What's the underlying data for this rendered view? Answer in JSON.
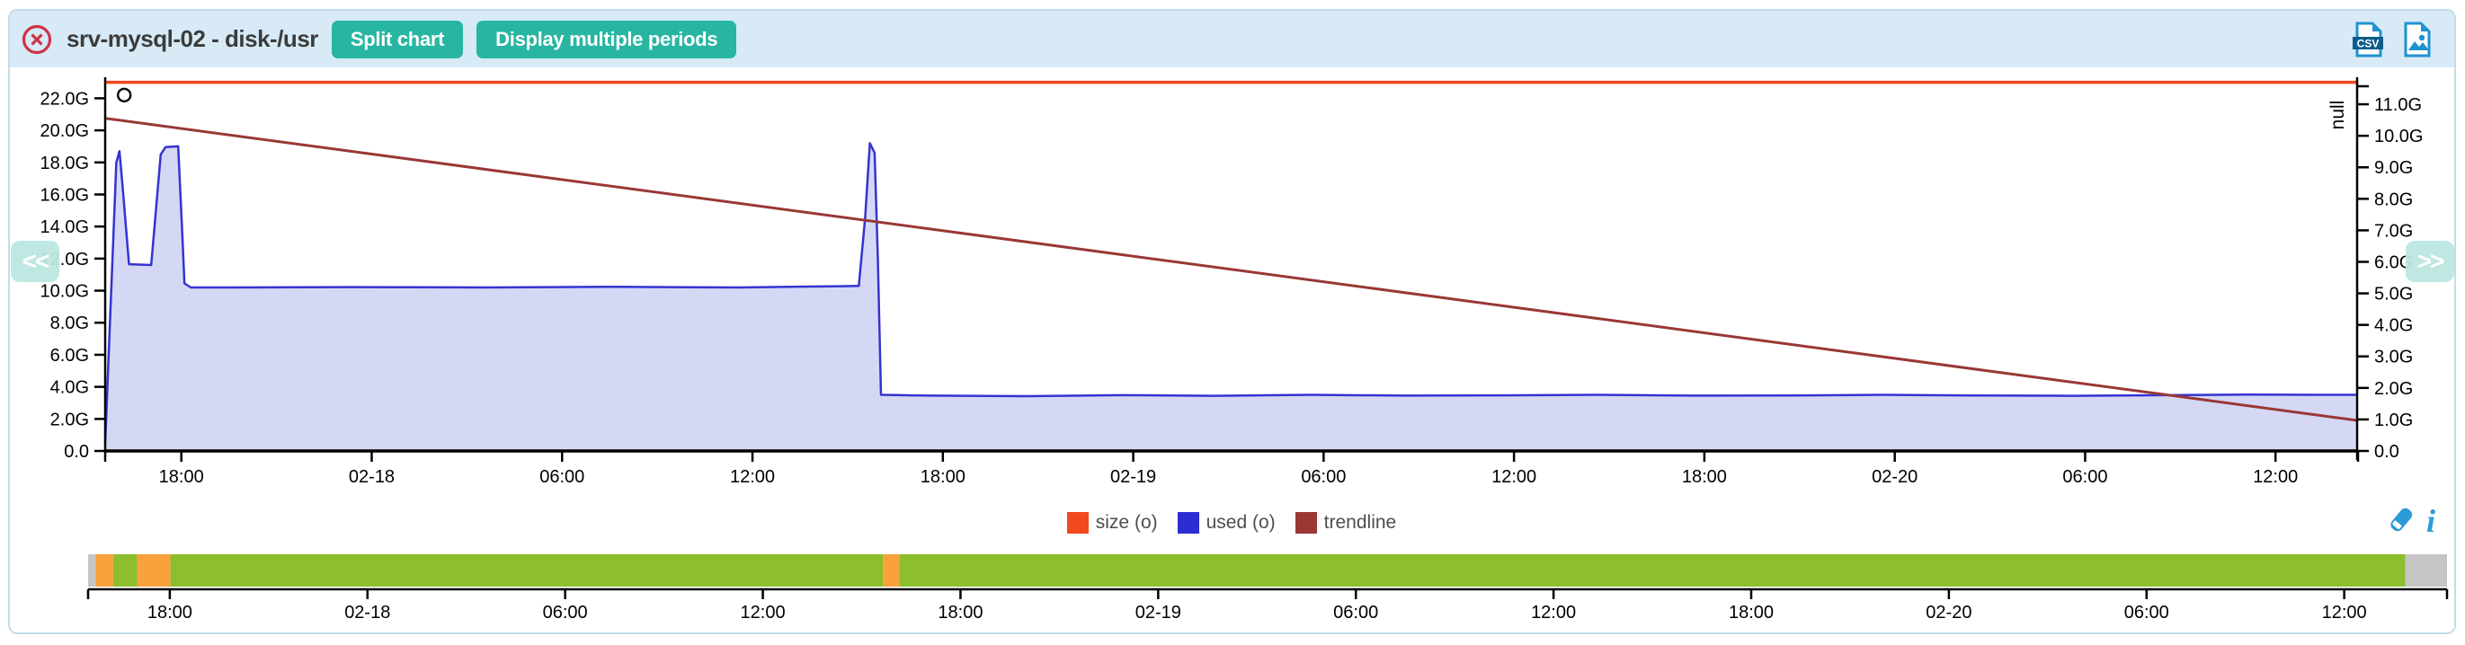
{
  "header": {
    "title": "srv-mysql-02 - disk-/usr",
    "split_chart_label": "Split chart",
    "multiple_periods_label": "Display multiple periods",
    "header_background": "#d7eaf6",
    "button_color": "#28b6a2",
    "close_icon_color": "#cf3347"
  },
  "toolbar": {
    "csv_export_icon": "csv-export-icon",
    "image_export_icon": "image-export-icon",
    "icon_color": "#1f93cf"
  },
  "nav": {
    "prev": "<<",
    "next": ">>"
  },
  "legend": {
    "items": [
      {
        "label": "size (o)",
        "color": "#f2491f"
      },
      {
        "label": "used (o)",
        "color": "#2d2dd2"
      },
      {
        "label": "trendline",
        "color": "#993835"
      }
    ],
    "tool_icon_color": "#2b9cd8"
  },
  "chart_data": {
    "type": "area",
    "title": "srv-mysql-02 - disk-/usr",
    "x_tick_labels": [
      "18:00",
      "02-18",
      "06:00",
      "12:00",
      "18:00",
      "02-19",
      "06:00",
      "12:00",
      "18:00",
      "02-20",
      "06:00",
      "12:00"
    ],
    "x_hours_range": [
      0,
      71
    ],
    "x_first_tick_hour": 2.4,
    "x_tick_interval_hours": 6,
    "left_axis": {
      "range": [
        0,
        23.2
      ],
      "tick_values": [
        0,
        2,
        4,
        6,
        8,
        10,
        12,
        14,
        16,
        18,
        20,
        22
      ],
      "tick_labels": [
        "0.0",
        "2.0G",
        "4.0G",
        "6.0G",
        "8.0G",
        "10.0G",
        "12.0G",
        "14.0G",
        "16.0G",
        "18.0G",
        "20.0G",
        "22.0G"
      ]
    },
    "right_axis": {
      "label": "null",
      "range": [
        0,
        11.8
      ],
      "tick_values": [
        0,
        1,
        2,
        3,
        4,
        5,
        6,
        7,
        8,
        9,
        10,
        11
      ],
      "tick_labels": [
        "0.0",
        "1.0G",
        "2.0G",
        "3.0G",
        "4.0G",
        "5.0G",
        "6.0G",
        "7.0G",
        "8.0G",
        "9.0G",
        "10.0G",
        "11.0G"
      ]
    },
    "series": [
      {
        "name": "size (o)",
        "type": "line",
        "color": "#f2491f",
        "width": 3.5,
        "points": [
          [
            0,
            23.0
          ],
          [
            71,
            23.0
          ]
        ]
      },
      {
        "name": "used (o)",
        "type": "area",
        "color": "#3533d0",
        "fill": "#d5d8f5",
        "width": 2.5,
        "points": [
          [
            0,
            0.5
          ],
          [
            0.35,
            18.0
          ],
          [
            0.45,
            18.7
          ],
          [
            0.55,
            16.5
          ],
          [
            0.75,
            11.65
          ],
          [
            1.45,
            11.6
          ],
          [
            1.75,
            18.5
          ],
          [
            1.9,
            18.95
          ],
          [
            2.3,
            19.0
          ],
          [
            2.42,
            14.0
          ],
          [
            2.5,
            10.45
          ],
          [
            2.7,
            10.2
          ],
          [
            4,
            10.2
          ],
          [
            8,
            10.22
          ],
          [
            12,
            10.2
          ],
          [
            16,
            10.24
          ],
          [
            20,
            10.2
          ],
          [
            23.2,
            10.28
          ],
          [
            23.75,
            10.3
          ],
          [
            23.95,
            14.5
          ],
          [
            24.1,
            19.2
          ],
          [
            24.25,
            18.6
          ],
          [
            24.35,
            12.0
          ],
          [
            24.45,
            3.5
          ],
          [
            26,
            3.45
          ],
          [
            29,
            3.42
          ],
          [
            32,
            3.48
          ],
          [
            35,
            3.44
          ],
          [
            38,
            3.5
          ],
          [
            41,
            3.45
          ],
          [
            44,
            3.47
          ],
          [
            47,
            3.5
          ],
          [
            50,
            3.45
          ],
          [
            53,
            3.46
          ],
          [
            56,
            3.5
          ],
          [
            59,
            3.46
          ],
          [
            62,
            3.44
          ],
          [
            65,
            3.48
          ],
          [
            67.5,
            3.52
          ],
          [
            69.5,
            3.5
          ],
          [
            71,
            3.5
          ]
        ]
      },
      {
        "name": "trendline",
        "type": "line",
        "color": "#993835",
        "width": 3,
        "points": [
          [
            0,
            20.75
          ],
          [
            71,
            1.9
          ]
        ]
      }
    ],
    "point_marker": {
      "shape": "o",
      "hour": 0.6,
      "value": 22.2
    }
  },
  "brush": {
    "x_tick_labels": [
      "18:00",
      "02-18",
      "06:00",
      "12:00",
      "18:00",
      "02-19",
      "06:00",
      "12:00",
      "18:00",
      "02-20",
      "06:00",
      "12:00"
    ],
    "hours_range": [
      0,
      71.6
    ],
    "first_tick_hour": 2.48,
    "tick_interval_hours": 6,
    "status_colors": {
      "ok": "#8cbe2d",
      "warning": "#f9a13b",
      "unknown": "#c5c5c5"
    },
    "segments": [
      {
        "status": "unknown",
        "from": 0,
        "to": 0.23
      },
      {
        "status": "warning",
        "from": 0.23,
        "to": 0.76
      },
      {
        "status": "ok",
        "from": 0.76,
        "to": 1.49
      },
      {
        "status": "warning",
        "from": 1.49,
        "to": 2.5
      },
      {
        "status": "ok",
        "from": 2.5,
        "to": 24.13
      },
      {
        "status": "warning",
        "from": 24.13,
        "to": 24.62
      },
      {
        "status": "ok",
        "from": 24.62,
        "to": 70.33
      },
      {
        "status": "unknown",
        "from": 70.33,
        "to": 71.6
      }
    ]
  }
}
